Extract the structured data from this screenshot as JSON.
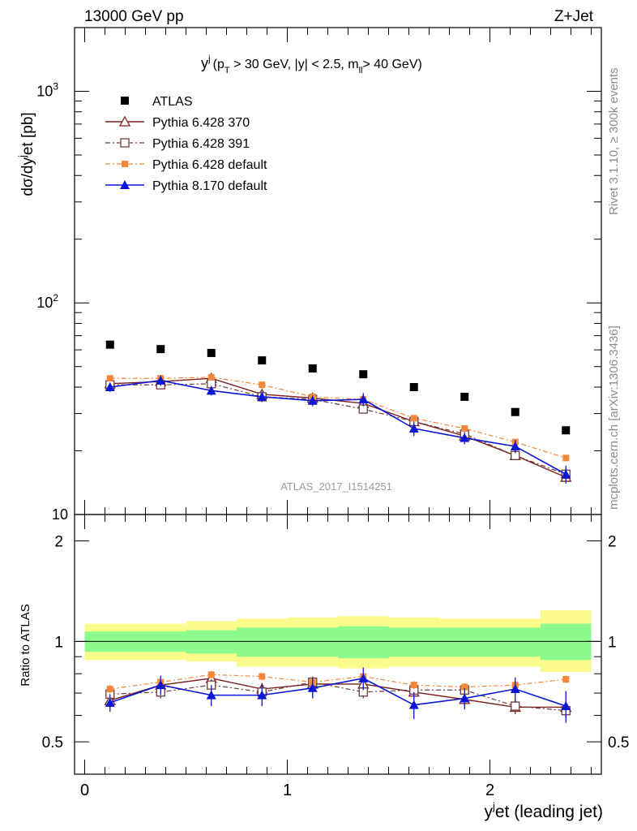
{
  "header": {
    "left": "13000 GeV pp",
    "right": "Z+Jet"
  },
  "side_text": {
    "top": "Rivet 3.1.10, ≥ 300k events",
    "bottom": "mcplots.cern.ch [arXiv:1306.3436]"
  },
  "colors": {
    "atlas": "#000000",
    "py370": "#7b1f1f",
    "py391": "#6e3b3b",
    "pydefault": "#f5873a",
    "py8": "#0b16d6",
    "band_inner": "#8cfb8c",
    "band_outer": "#fbfb8c",
    "watermark": "#9b9b9b"
  },
  "chart_data": [
    {
      "type": "scatter",
      "title": "y",
      "title_sup": "j",
      "title_cut_pt": "(p",
      "title_cut_pt_sub": "T",
      "title_cut_rest1": " > 30 GeV, |y| < 2.5, m",
      "title_cut_ll_sub": "ll",
      "title_cut_rest2": "> 40 GeV)",
      "ylabel": "dσ/dy",
      "ylabel_sup": "j",
      "ylabel_rest": "et [pb]",
      "yscale": "log",
      "ylim": [
        10,
        2000
      ],
      "xlim": [
        -0.05,
        2.55
      ],
      "ytick_labels": [
        "10",
        "10",
        "10"
      ],
      "ytick_sups": [
        "",
        "2",
        "3"
      ],
      "ytick_values": [
        10,
        100,
        1000
      ],
      "watermark": "ATLAS_2017_I1514251",
      "x": [
        0.125,
        0.375,
        0.625,
        0.875,
        1.125,
        1.375,
        1.625,
        1.875,
        2.125,
        2.375
      ],
      "bin_edges": [
        0,
        0.25,
        0.5,
        0.75,
        1.0,
        1.25,
        1.5,
        1.75,
        2.0,
        2.25,
        2.5
      ],
      "series": [
        {
          "name": "ATLAS",
          "key": "atlas",
          "values": [
            63.5,
            60.5,
            58.0,
            53.5,
            49.0,
            46.0,
            40.0,
            36.0,
            30.5,
            25.0
          ],
          "errors": [
            0,
            0,
            0,
            0,
            0,
            0,
            0,
            0,
            0,
            0
          ]
        },
        {
          "name": "Pythia 6.428 370",
          "key": "py370",
          "values": [
            41.5,
            42.5,
            44.0,
            37.0,
            35.5,
            33.5,
            27.5,
            23.5,
            19.0,
            15.0
          ],
          "errors": [
            1.5,
            1.5,
            1.5,
            1.5,
            1.5,
            1.5,
            1.0,
            1.0,
            0.8,
            0.8
          ]
        },
        {
          "name": "Pythia 6.428 391",
          "key": "py391",
          "values": [
            41.0,
            41.0,
            41.5,
            36.0,
            35.0,
            31.5,
            27.5,
            24.0,
            19.0,
            15.5
          ],
          "errors": [
            1.5,
            1.5,
            1.5,
            1.5,
            1.5,
            1.5,
            1.0,
            1.0,
            0.8,
            0.8
          ]
        },
        {
          "name": "Pythia 6.428 default",
          "key": "pydefault",
          "values": [
            44.0,
            44.0,
            44.5,
            41.0,
            36.0,
            35.0,
            28.5,
            25.5,
            22.0,
            18.5
          ],
          "errors": [
            1.0,
            1.0,
            1.0,
            1.0,
            1.0,
            1.0,
            0.8,
            0.8,
            0.6,
            0.6
          ]
        },
        {
          "name": "Pythia 8.170 default",
          "key": "py8",
          "values": [
            40.0,
            43.0,
            38.5,
            36.0,
            34.5,
            35.0,
            25.5,
            23.0,
            21.0,
            15.5
          ],
          "errors": [
            2.0,
            2.5,
            2.0,
            2.0,
            2.0,
            2.5,
            2.0,
            1.5,
            1.5,
            1.5
          ]
        }
      ],
      "legend_position": "top-left"
    },
    {
      "type": "scatter",
      "ylabel": "Ratio to ATLAS",
      "xlabel": "y",
      "xlabel_sup": "j",
      "xlabel_rest": "et (leading jet)",
      "ylim": [
        0.4,
        2.4
      ],
      "ytick_labels": [
        "0.5",
        "1",
        "2"
      ],
      "ytick_values": [
        0.5,
        1,
        2
      ],
      "xtick_labels": [
        "0",
        "1",
        "2"
      ],
      "xtick_values": [
        0,
        1,
        2
      ],
      "band_inner": [
        [
          0.93,
          1.07
        ],
        [
          0.93,
          1.07
        ],
        [
          0.92,
          1.08
        ],
        [
          0.9,
          1.1
        ],
        [
          0.9,
          1.1
        ],
        [
          0.89,
          1.11
        ],
        [
          0.9,
          1.1
        ],
        [
          0.9,
          1.1
        ],
        [
          0.9,
          1.1
        ],
        [
          0.88,
          1.13
        ]
      ],
      "band_outer": [
        [
          0.88,
          1.13
        ],
        [
          0.88,
          1.13
        ],
        [
          0.87,
          1.15
        ],
        [
          0.84,
          1.17
        ],
        [
          0.84,
          1.18
        ],
        [
          0.83,
          1.19
        ],
        [
          0.84,
          1.18
        ],
        [
          0.84,
          1.17
        ],
        [
          0.84,
          1.17
        ],
        [
          0.81,
          1.24
        ]
      ],
      "series": [
        {
          "key": "py370",
          "values": [
            0.665,
            0.74,
            0.775,
            0.72,
            0.745,
            0.745,
            0.705,
            0.67,
            0.635,
            0.635
          ],
          "errors": [
            0.03,
            0.03,
            0.03,
            0.03,
            0.03,
            0.03,
            0.03,
            0.03,
            0.03,
            0.03
          ]
        },
        {
          "key": "py391",
          "values": [
            0.695,
            0.705,
            0.74,
            0.705,
            0.755,
            0.705,
            0.715,
            0.715,
            0.64,
            0.62
          ],
          "errors": [
            0.03,
            0.03,
            0.03,
            0.03,
            0.03,
            0.03,
            0.03,
            0.03,
            0.03,
            0.03
          ]
        },
        {
          "key": "pydefault",
          "values": [
            0.72,
            0.755,
            0.795,
            0.785,
            0.755,
            0.785,
            0.74,
            0.73,
            0.74,
            0.77
          ],
          "errors": [
            0.02,
            0.02,
            0.02,
            0.02,
            0.02,
            0.02,
            0.02,
            0.02,
            0.02,
            0.02
          ]
        },
        {
          "key": "py8",
          "values": [
            0.655,
            0.74,
            0.69,
            0.69,
            0.725,
            0.775,
            0.645,
            0.675,
            0.72,
            0.64
          ],
          "errors": [
            0.04,
            0.05,
            0.05,
            0.05,
            0.05,
            0.06,
            0.06,
            0.05,
            0.06,
            0.07
          ]
        }
      ]
    }
  ]
}
